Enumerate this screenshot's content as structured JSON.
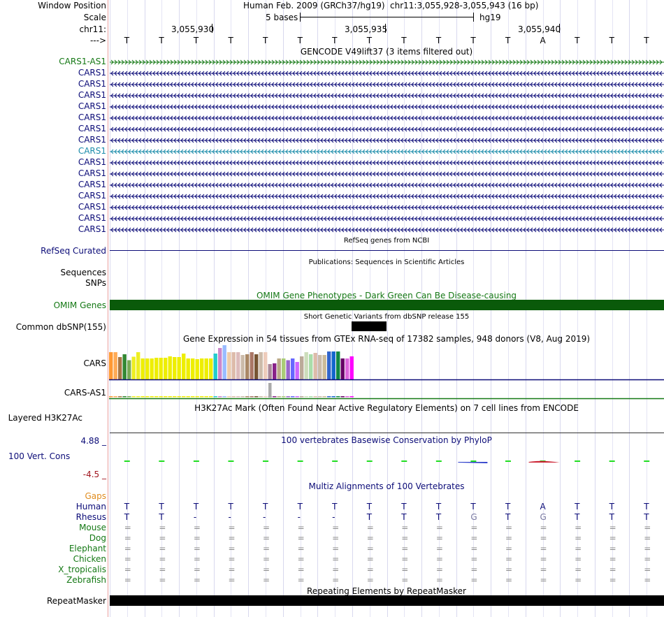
{
  "header": {
    "window_position_label": "Window Position",
    "assembly_text": "Human Feb. 2009 (GRCh37/hg19)",
    "position_text": "chr11:3,055,928-3,055,943 (16 bp)",
    "scale_label": "Scale",
    "scale_bar_text": "5 bases",
    "scale_db": "hg19",
    "chrom_label": "chr11:",
    "strand_label": "--->",
    "coord_ticks": [
      "3,055,930",
      "3,055,935",
      "3,055,940"
    ]
  },
  "bases": [
    "T",
    "T",
    "T",
    "T",
    "T",
    "T",
    "T",
    "T",
    "T",
    "T",
    "T",
    "T",
    "A",
    "T",
    "T",
    "T"
  ],
  "gencode": {
    "title": "GENCODE V49lift37 (3 items filtered out)",
    "genes": [
      {
        "name": "CARS1-AS1",
        "color": "#147814",
        "strand": "+"
      },
      {
        "name": "CARS1",
        "color": "#0c0c78",
        "strand": "-"
      },
      {
        "name": "CARS1",
        "color": "#0c0c78",
        "strand": "-"
      },
      {
        "name": "CARS1",
        "color": "#0c0c78",
        "strand": "-"
      },
      {
        "name": "CARS1",
        "color": "#0c0c78",
        "strand": "-"
      },
      {
        "name": "CARS1",
        "color": "#0c0c78",
        "strand": "-"
      },
      {
        "name": "CARS1",
        "color": "#0c0c78",
        "strand": "-"
      },
      {
        "name": "CARS1",
        "color": "#0c0c78",
        "strand": "-"
      },
      {
        "name": "CARS1",
        "color": "#1c8caa",
        "strand": "-"
      },
      {
        "name": "CARS1",
        "color": "#0c0c78",
        "strand": "-"
      },
      {
        "name": "CARS1",
        "color": "#0c0c78",
        "strand": "-"
      },
      {
        "name": "CARS1",
        "color": "#0c0c78",
        "strand": "-"
      },
      {
        "name": "CARS1",
        "color": "#0c0c78",
        "strand": "-"
      },
      {
        "name": "CARS1",
        "color": "#0c0c78",
        "strand": "-"
      },
      {
        "name": "CARS1",
        "color": "#0c0c78",
        "strand": "-"
      },
      {
        "name": "CARS1",
        "color": "#0c0c78",
        "strand": "-"
      }
    ]
  },
  "refseq": {
    "title": "RefSeq genes from NCBI",
    "label": "RefSeq Curated"
  },
  "publications": {
    "title": "Publications: Sequences in Scientific Articles",
    "label_line1": "Sequences",
    "label_line2": "SNPs"
  },
  "omim": {
    "title": "OMIM Gene Phenotypes - Dark Green Can Be Disease-causing",
    "label": "OMIM Genes",
    "color": "#0a5a0a"
  },
  "dbsnp": {
    "title": "Short Genetic Variants from dbSNP release 155",
    "label": "Common dbSNP(155)"
  },
  "gtex": {
    "title": "Gene Expression in 54 tissues from GTEx RNA-seq of 17382 samples, 948 donors (V8, Aug 2019)",
    "gene1": "CARS",
    "gene2": "CARS-AS1",
    "bars": [
      {
        "c": "#ff9933",
        "v": 0.78
      },
      {
        "c": "#ffaa55",
        "v": 0.78
      },
      {
        "c": "#aa7744",
        "v": 0.64
      },
      {
        "c": "#338833",
        "v": 0.72
      },
      {
        "c": "#77aa55",
        "v": 0.55
      },
      {
        "c": "#eeee22",
        "v": 0.65
      },
      {
        "c": "#eeee22",
        "v": 0.78
      },
      {
        "c": "#eeee00",
        "v": 0.6
      },
      {
        "c": "#eeee00",
        "v": 0.6
      },
      {
        "c": "#eeee00",
        "v": 0.6
      },
      {
        "c": "#eeee00",
        "v": 0.62
      },
      {
        "c": "#eeee00",
        "v": 0.62
      },
      {
        "c": "#eeee00",
        "v": 0.62
      },
      {
        "c": "#eeee00",
        "v": 0.66
      },
      {
        "c": "#eeee00",
        "v": 0.64
      },
      {
        "c": "#eeee00",
        "v": 0.64
      },
      {
        "c": "#eeee00",
        "v": 0.74
      },
      {
        "c": "#eeee00",
        "v": 0.6
      },
      {
        "c": "#eeee00",
        "v": 0.6
      },
      {
        "c": "#eeee00",
        "v": 0.58
      },
      {
        "c": "#eeee00",
        "v": 0.6
      },
      {
        "c": "#eeee00",
        "v": 0.6
      },
      {
        "c": "#eeee00",
        "v": 0.6
      },
      {
        "c": "#22cccc",
        "v": 0.74
      },
      {
        "c": "#cc88cc",
        "v": 0.9
      },
      {
        "c": "#99bbff",
        "v": 0.98
      },
      {
        "c": "#eeccaa",
        "v": 0.78
      },
      {
        "c": "#ddbbaa",
        "v": 0.78
      },
      {
        "c": "#ddbbbb",
        "v": 0.78
      },
      {
        "c": "#ccbbaa",
        "v": 0.7
      },
      {
        "c": "#aa8866",
        "v": 0.72
      },
      {
        "c": "#aa7766",
        "v": 0.78
      },
      {
        "c": "#775533",
        "v": 0.72
      },
      {
        "c": "#ccbbaa",
        "v": 0.78
      },
      {
        "c": "#eeccbb",
        "v": 0.78
      },
      {
        "c": "#aa8899",
        "v": 0.44
      },
      {
        "c": "#882288",
        "v": 0.46
      },
      {
        "c": "#bbaa88",
        "v": 0.6
      },
      {
        "c": "#aacc77",
        "v": 0.6
      },
      {
        "c": "#9966cc",
        "v": 0.55
      },
      {
        "c": "#6666ff",
        "v": 0.6
      },
      {
        "c": "#cc66ff",
        "v": 0.5
      },
      {
        "c": "#bbaa99",
        "v": 0.66
      },
      {
        "c": "#ccddbb",
        "v": 0.78
      },
      {
        "c": "#aaddaa",
        "v": 0.72
      },
      {
        "c": "#ddbbaa",
        "v": 0.76
      },
      {
        "c": "#ccbbaa",
        "v": 0.7
      },
      {
        "c": "#ccbb99",
        "v": 0.7
      },
      {
        "c": "#3366cc",
        "v": 0.8
      },
      {
        "c": "#1166cc",
        "v": 0.8
      },
      {
        "c": "#118844",
        "v": 0.8
      },
      {
        "c": "#660066",
        "v": 0.6
      },
      {
        "c": "#dd66dd",
        "v": 0.6
      },
      {
        "c": "#ff00ff",
        "v": 0.66
      }
    ],
    "as1_bar_index": 35
  },
  "h3k27ac": {
    "title": "H3K27Ac Mark (Often Found Near Active Regulatory Elements) on 7 cell lines from ENCODE",
    "label": "Layered H3K27Ac"
  },
  "conservation": {
    "title": "100 vertebrates Basewise Conservation by PhyloP",
    "label": "100 Vert. Cons",
    "max_label": "4.88 _",
    "min_label": "-4.5 _"
  },
  "multiz": {
    "title": "Multiz Alignments of 100 Vertebrates",
    "gaps_label": "Gaps",
    "species": [
      {
        "name": "Human",
        "color": "#0c0c78",
        "row": "T T T T T T T T T T T T A T T T"
      },
      {
        "name": "Rhesus",
        "color": "#0c0c78",
        "row": "T T - - - - - T T T G T G T T T"
      },
      {
        "name": "Mouse",
        "color": "#147814",
        "row": "= = = = = = = = = = = = = = = ="
      },
      {
        "name": "Dog",
        "color": "#147814",
        "row": "= = = = = = = = = = = = = = = ="
      },
      {
        "name": "Elephant",
        "color": "#147814",
        "row": "= = = = = = = = = = = = = = = ="
      },
      {
        "name": "Chicken",
        "color": "#147814",
        "row": "= = = = = = = = = = = = = = = ="
      },
      {
        "name": "X_tropicalis",
        "color": "#147814",
        "row": "= = = = = = = = = = = = = = = ="
      },
      {
        "name": "Zebrafish",
        "color": "#147814",
        "row": "= = = = = = = = = = = = = = = ="
      }
    ]
  },
  "repeatmasker": {
    "title": "Repeating Elements by RepeatMasker",
    "label": "RepeatMasker"
  }
}
